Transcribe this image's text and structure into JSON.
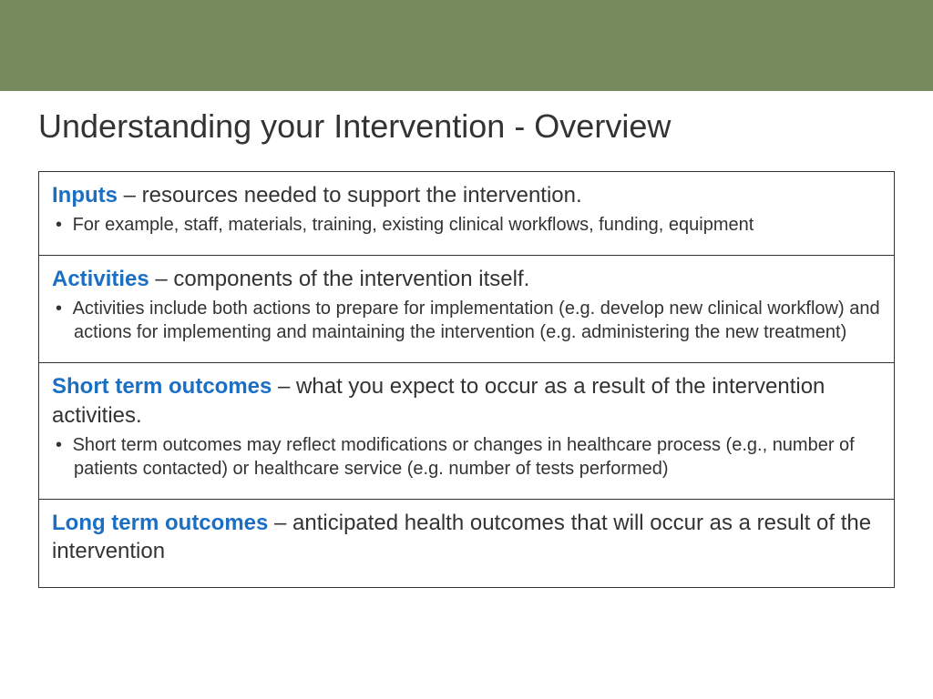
{
  "page": {
    "title": "Understanding your Intervention - Overview",
    "header_bar_color": "#778a5e",
    "background_color": "#ffffff",
    "title_color": "#333333",
    "term_color": "#1a6fc4",
    "body_text_color": "#333333",
    "border_color": "#333333",
    "title_fontsize": 36,
    "term_fontsize": 24,
    "bullet_fontsize": 20
  },
  "rows": [
    {
      "term": "Inputs",
      "definition": " – resources needed to support the intervention.",
      "bullet": "For example, staff, materials, training, existing clinical workflows, funding, equipment"
    },
    {
      "term": "Activities",
      "definition": " – components of the intervention itself.",
      "bullet": "Activities include both actions to prepare for implementation (e.g. develop new clinical workflow) and actions for implementing and maintaining the intervention (e.g. administering the new treatment)"
    },
    {
      "term": "Short term outcomes",
      "definition": " – what you expect to occur as a result of the intervention activities.",
      "bullet": "Short term outcomes may reflect modifications or changes in healthcare process (e.g., number of patients contacted) or healthcare service (e.g. number of tests performed)"
    },
    {
      "term": "Long term outcomes",
      "definition": " – anticipated health outcomes that will occur as a result of the intervention",
      "bullet": ""
    }
  ]
}
